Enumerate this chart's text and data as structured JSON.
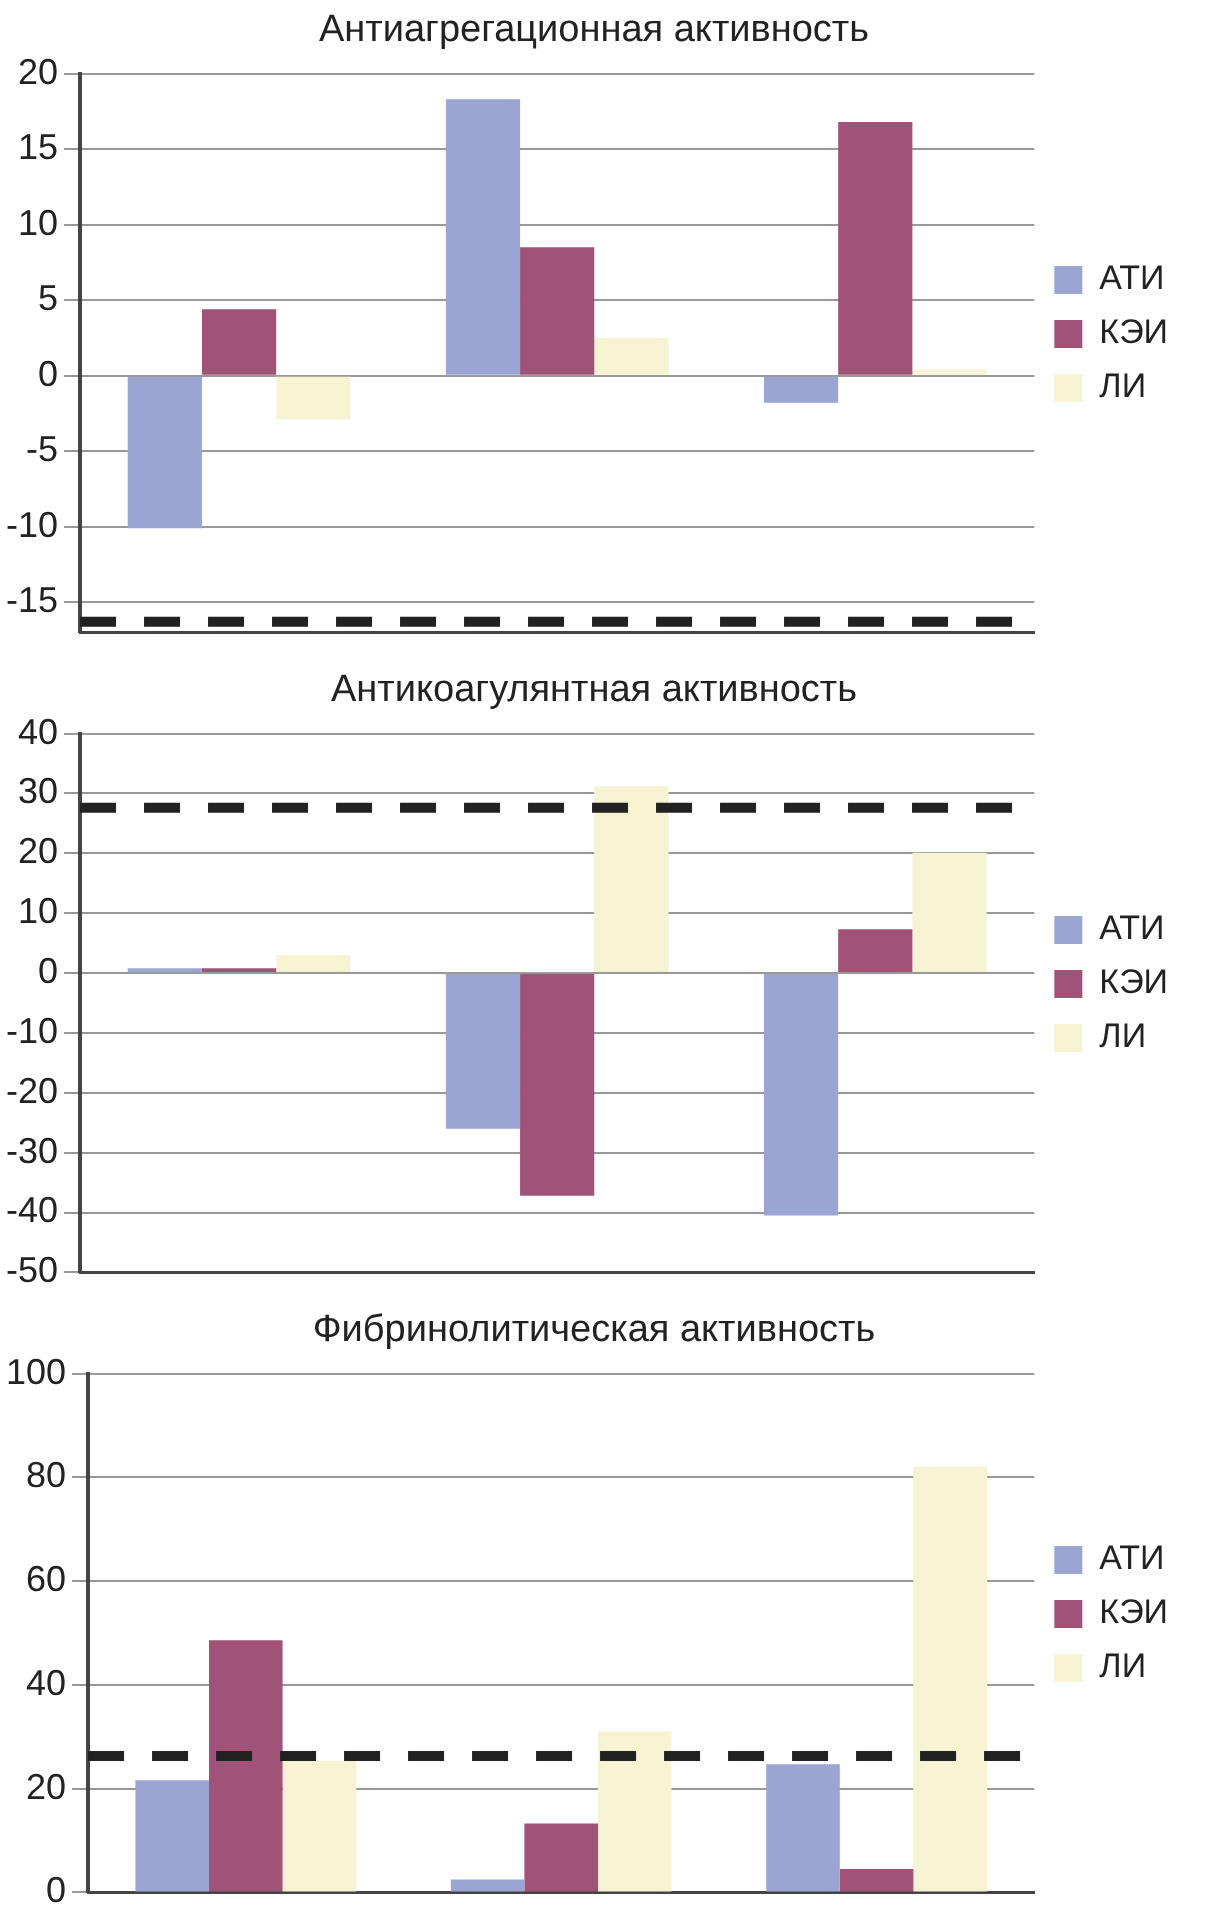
{
  "chart_data": [
    {
      "type": "bar",
      "title": "Антиагрегационная активность",
      "categories": [
        null,
        null,
        null
      ],
      "series": [
        {
          "name": "АТИ",
          "color": "#9aa5d3",
          "values": [
            -10.1,
            18.3,
            -1.8
          ]
        },
        {
          "name": "КЭИ",
          "color": "#a05277",
          "values": [
            4.4,
            8.5,
            16.8
          ]
        },
        {
          "name": "ЛИ",
          "color": "#f5f3d2",
          "values": [
            -2.9,
            2.5,
            0.4
          ]
        }
      ],
      "ylim": [
        -17,
        20
      ],
      "yticks": [
        -15,
        -10,
        -5,
        0,
        5,
        10,
        15,
        20
      ],
      "grid": "y",
      "legend": "right",
      "tick_labels": "y",
      "ref_lines": [
        {
          "axis": "y",
          "value": -16.3,
          "color": "#222222",
          "line_style": "dashed"
        }
      ]
    },
    {
      "type": "bar",
      "title": "Антикоагулянтная активность",
      "categories": [
        null,
        null,
        null
      ],
      "series": [
        {
          "name": "АТИ",
          "color": "#9aa5d3",
          "values": [
            0.8,
            -26,
            -40.5
          ]
        },
        {
          "name": "КЭИ",
          "color": "#a05277",
          "values": [
            0.8,
            -37.2,
            7.3
          ]
        },
        {
          "name": "ЛИ",
          "color": "#f5f3d2",
          "values": [
            3,
            31.2,
            20.1
          ]
        }
      ],
      "ylim": [
        -50,
        40
      ],
      "yticks": [
        -50,
        -40,
        -30,
        -20,
        -10,
        0,
        10,
        20,
        30,
        40
      ],
      "grid": "y",
      "legend": "right",
      "tick_labels": "y",
      "ref_lines": [
        {
          "axis": "y",
          "value": 27.6,
          "color": "#222222",
          "line_style": "dashed"
        }
      ]
    },
    {
      "type": "bar",
      "title": "Фибринолитическая активность",
      "categories": [
        null,
        null,
        null
      ],
      "series": [
        {
          "name": "АТИ",
          "color": "#9aa5d3",
          "values": [
            21.6,
            2.5,
            24.7
          ]
        },
        {
          "name": "КЭИ",
          "color": "#a05277",
          "values": [
            48.6,
            13.3,
            4.5
          ]
        },
        {
          "name": "ЛИ",
          "color": "#f5f3d2",
          "values": [
            25.4,
            31,
            82.1
          ]
        }
      ],
      "ylim": [
        0,
        100
      ],
      "yticks": [
        0,
        20,
        40,
        60,
        80,
        100
      ],
      "grid": "y",
      "legend": "right",
      "tick_labels": "y",
      "ref_lines": [
        {
          "axis": "y",
          "value": 26.3,
          "color": "#222222",
          "line_style": "dashed"
        }
      ]
    }
  ]
}
